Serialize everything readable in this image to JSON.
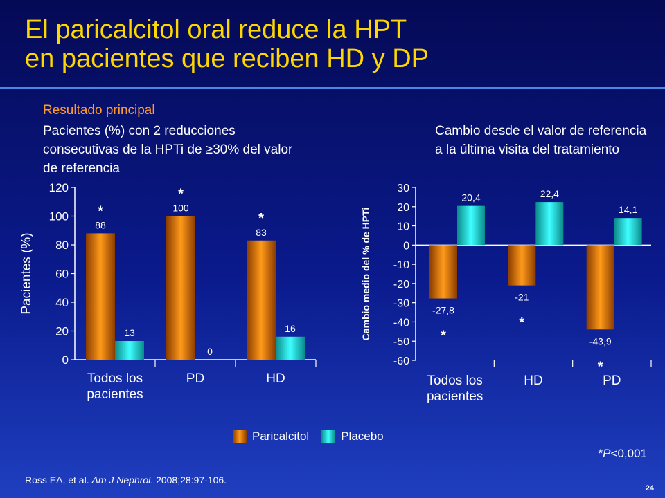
{
  "slide": {
    "title_line1": "El paricalcitol oral reduce la HPT",
    "title_line2": "en pacientes que reciben HD y DP",
    "section_label": "Resultado principal",
    "left_subtitle": "Pacientes (%) con 2 reducciones consecutivas de la HPTi de ≥30% del valor de referencia",
    "right_subtitle": "Cambio desde el valor de referencia a la última visita del tratamiento",
    "footnote_prefix": "*",
    "footnote_p": "P",
    "footnote_rest": "<0,001",
    "citation_authors": "Ross EA, et al. ",
    "citation_journal": "Am J Nephrol",
    "citation_rest": ". 2008;28:97-106.",
    "page_number": "24",
    "legend": [
      "Paricalcitol",
      "Placebo"
    ],
    "colors": {
      "background": "#0a1a8c",
      "title": "#ffd700",
      "section_label": "#ff9a2e",
      "paricalcitol": "#ff9a1a",
      "placebo": "#3fffff"
    }
  },
  "chart_data": [
    {
      "type": "bar",
      "ylabel": "Pacientes (%)",
      "ylim": [
        0,
        120
      ],
      "yticks": [
        0,
        20,
        40,
        60,
        80,
        100,
        120
      ],
      "categories": [
        "Todos los pacientes",
        "PD",
        "HD"
      ],
      "category_lines": [
        [
          "Todos los",
          "pacientes"
        ],
        [
          "PD"
        ],
        [
          "HD"
        ]
      ],
      "series": [
        {
          "name": "Paricalcitol",
          "values": [
            88,
            100,
            83
          ],
          "labels": [
            "88",
            "100",
            "83"
          ]
        },
        {
          "name": "Placebo",
          "values": [
            13,
            0,
            16
          ],
          "labels": [
            "13",
            "0",
            "16"
          ]
        }
      ],
      "significance": [
        "*",
        "*",
        "*"
      ]
    },
    {
      "type": "bar",
      "ylabel": "Cambio medio del % de HPTi",
      "ylim": [
        -60,
        30
      ],
      "yticks": [
        30,
        20,
        10,
        0,
        -10,
        -20,
        -30,
        -40,
        -50,
        -60
      ],
      "categories": [
        "Todos los pacientes",
        "HD",
        "PD"
      ],
      "category_lines": [
        [
          "Todos los",
          "pacientes"
        ],
        [
          "HD"
        ],
        [
          "PD"
        ]
      ],
      "series": [
        {
          "name": "Paricalcitol",
          "values": [
            -27.8,
            -21,
            -43.9
          ],
          "labels": [
            "-27,8",
            "-21",
            "-43,9"
          ]
        },
        {
          "name": "Placebo",
          "values": [
            20.4,
            22.4,
            14.1
          ],
          "labels": [
            "20,4",
            "22,4",
            "14,1"
          ]
        }
      ],
      "significance": [
        "*",
        "*",
        "*"
      ]
    }
  ]
}
